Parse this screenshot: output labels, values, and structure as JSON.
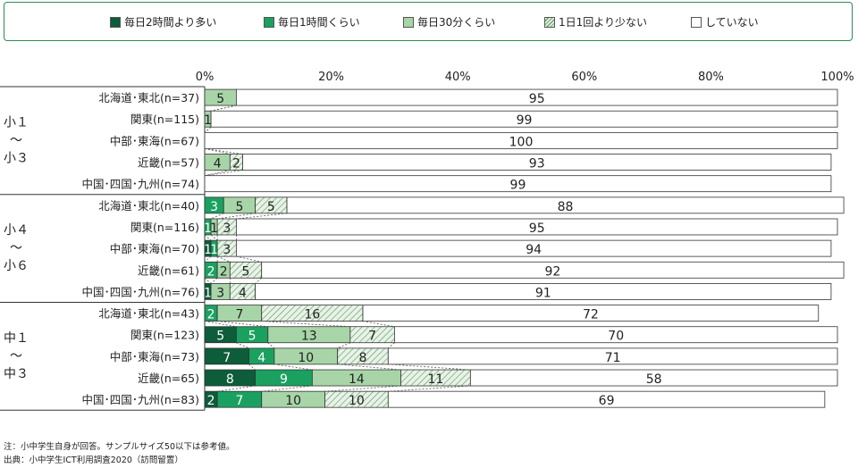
{
  "legend": [
    {
      "label": "毎日2時間より多い",
      "color": "#0d5c3a"
    },
    {
      "label": "毎日1時間くらい",
      "color": "#1aa160"
    },
    {
      "label": "毎日30分くらい",
      "color": "#a8d5a8"
    },
    {
      "label": "1日1回より少ない",
      "color": "#d9efd9",
      "hatch": true
    },
    {
      "label": "していない",
      "color": "#ffffff"
    }
  ],
  "notes": {
    "note1": "注：小中学生自身が回答。サンプルサイズ50以下は参考値。",
    "note2": "出典：小中学生ICT利用調査2020（訪問留置）"
  },
  "chart_data": {
    "type": "bar",
    "orientation": "horizontal",
    "stacked": true,
    "xlim": [
      0,
      100
    ],
    "xticks": [
      "0%",
      "20%",
      "40%",
      "60%",
      "80%",
      "100%"
    ],
    "legend_position": "top",
    "groups": [
      {
        "label": [
          "小１",
          "～",
          "小３"
        ],
        "start": 0,
        "end": 5
      },
      {
        "label": [
          "小４",
          "～",
          "小６"
        ],
        "start": 5,
        "end": 10
      },
      {
        "label": [
          "中１",
          "～",
          "中３"
        ],
        "start": 10,
        "end": 15
      }
    ],
    "categories": [
      "北海道･東北(n=37)",
      "関東(n=115)",
      "中部･東海(n=67)",
      "近畿(n=57)",
      "中国･四国･九州(n=74)",
      "北海道･東北(n=40)",
      "関東(n=116)",
      "中部･東海(n=70)",
      "近畿(n=61)",
      "中国･四国･九州(n=76)",
      "北海道･東北(n=43)",
      "関東(n=123)",
      "中部･東海(n=73)",
      "近畿(n=65)",
      "中国･四国･九州(n=83)"
    ],
    "series": [
      {
        "name": "毎日2時間より多い",
        "values": [
          0,
          0,
          0,
          0,
          0,
          0,
          0,
          1,
          0,
          1,
          0,
          5,
          7,
          8,
          2
        ]
      },
      {
        "name": "毎日1時間くらい",
        "values": [
          0,
          0,
          0,
          0,
          0,
          3,
          1,
          1,
          2,
          0,
          2,
          5,
          4,
          9,
          7
        ]
      },
      {
        "name": "毎日30分くらい",
        "values": [
          5,
          1,
          0,
          4,
          0,
          5,
          1,
          0,
          2,
          3,
          7,
          13,
          10,
          14,
          10
        ]
      },
      {
        "name": "1日1回より少ない",
        "values": [
          0,
          0,
          0,
          2,
          0,
          5,
          3,
          3,
          5,
          4,
          16,
          7,
          8,
          11,
          10
        ]
      },
      {
        "name": "していない",
        "values": [
          95,
          99,
          100,
          93,
          99,
          88,
          95,
          94,
          92,
          91,
          72,
          70,
          71,
          58,
          69
        ]
      }
    ]
  }
}
